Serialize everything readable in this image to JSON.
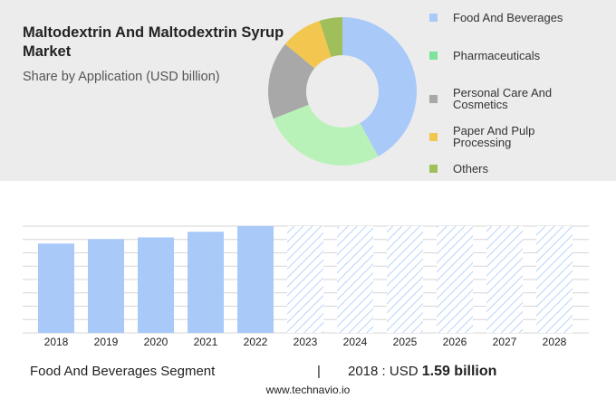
{
  "header": {
    "title": "Maltodextrin And Maltodextrin Syrup Market",
    "subtitle": "Share by Application (USD billion)"
  },
  "chart_data": [
    {
      "type": "pie",
      "donut": true,
      "categories": [
        "Food And Beverages",
        "Pharmaceuticals",
        "Personal Care And Cosmetics",
        "Paper And Pulp Processing",
        "Others"
      ],
      "values": [
        42,
        27,
        17,
        9,
        5
      ],
      "colors": [
        "#a9c9f9",
        "#b8f2b8",
        "#a8a8a8",
        "#f2c64f",
        "#9fbf5a"
      ],
      "legend_colors": [
        "#a9c9f9",
        "#7ee29b",
        "#a8a8a8",
        "#f2c64f",
        "#9fbf5a"
      ]
    },
    {
      "type": "bar",
      "categories": [
        "2018",
        "2019",
        "2020",
        "2021",
        "2022",
        "2023",
        "2024",
        "2025",
        "2026",
        "2027",
        "2028"
      ],
      "values": [
        1.59,
        1.67,
        1.7,
        1.8,
        1.9,
        null,
        null,
        null,
        null,
        null,
        null
      ],
      "color": "#a9c9f9",
      "ylim": [
        0,
        1.9
      ],
      "grid": true
    }
  ],
  "footer": {
    "segment": "Food And Beverages Segment",
    "separator": "|",
    "year_label": "2018 : USD",
    "value": "1.59 billion",
    "source": "www.technavio.io"
  }
}
